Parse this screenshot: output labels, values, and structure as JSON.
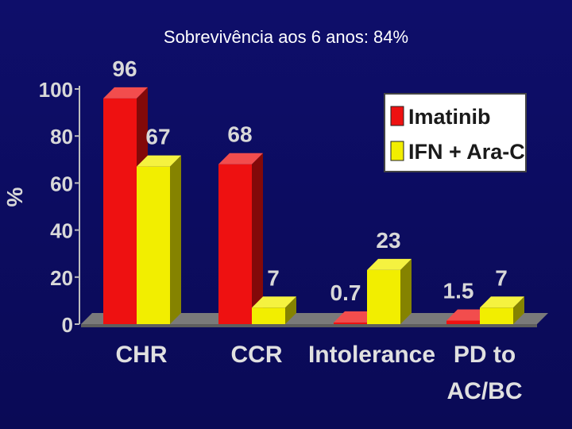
{
  "caption": "Sobrevivência aos 6 anos: 84%",
  "chart_data": {
    "type": "bar",
    "ylabel": "%",
    "xlabel": "",
    "ylim": [
      0,
      100
    ],
    "yticks": [
      0,
      20,
      40,
      60,
      80,
      100
    ],
    "categories": [
      [
        "CHR"
      ],
      [
        "CCR"
      ],
      [
        "Intolerance"
      ],
      [
        "PD to",
        "AC/BC"
      ]
    ],
    "series": [
      {
        "name": "Imatinib",
        "values": [
          96,
          68,
          0.7,
          1.5
        ],
        "labels": [
          "96",
          "68",
          "0.7",
          "1.5"
        ],
        "color": "#ee1111"
      },
      {
        "name": "IFN + Ara-C",
        "values": [
          67,
          7,
          23,
          7
        ],
        "labels": [
          "67",
          "7",
          "23",
          "7"
        ],
        "color": "#f2ee00"
      }
    ],
    "legend_position": "top-right",
    "style": "3d-bars"
  }
}
